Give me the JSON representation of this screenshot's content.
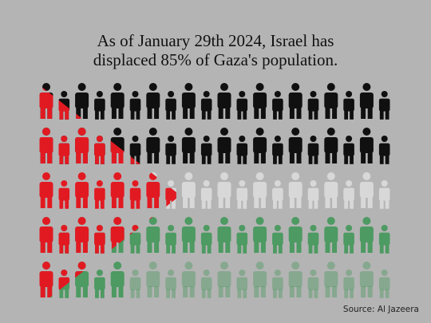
{
  "headline": {
    "line1": "As of January 29th 2024, Israel has",
    "line2": "displaced 85% of Gaza's population."
  },
  "source": "Source: Al Jazeera",
  "chart_data": {
    "type": "pictograph",
    "displaced_percent": 85,
    "rows": 5,
    "figures_per_row": 20,
    "flag_colors": {
      "black": "#101010",
      "white": "#d8d8d8",
      "green": "#4d9a62",
      "red": "#e11a22"
    }
  }
}
